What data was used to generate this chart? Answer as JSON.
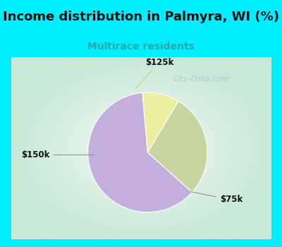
{
  "title": "Income distribution in Palmyra, WI (%)",
  "subtitle": "Multirace residents",
  "subtitle_color": "#22AAAA",
  "title_color": "#111111",
  "title_fontsize": 13,
  "subtitle_fontsize": 10,
  "background_color": "#00EEFF",
  "chart_bg_color": "#E8F5EE",
  "slices": [
    {
      "label": "$75k",
      "value": 62,
      "color": "#C4AEDD"
    },
    {
      "label": "$150k",
      "value": 28,
      "color": "#C8D5A0"
    },
    {
      "label": "$125k",
      "value": 10,
      "color": "#EEEEA0"
    }
  ],
  "watermark": "City-Data.com",
  "watermark_color": "#AABBCC",
  "startangle": 95
}
